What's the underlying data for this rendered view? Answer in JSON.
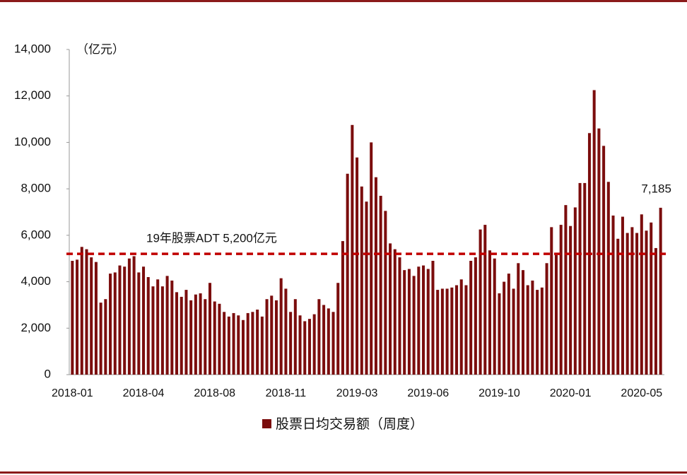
{
  "chart_data": {
    "type": "bar",
    "y_unit": "（亿元）",
    "legend": "股票日均交易额（周度）",
    "color": "#7b0d0d",
    "reference_line": {
      "value": 5200,
      "label": "19年股票ADT 5,200亿元",
      "color": "#c00000"
    },
    "categories": [
      "2018-01",
      null,
      null,
      null,
      null,
      null,
      null,
      null,
      null,
      null,
      null,
      null,
      null,
      null,
      null,
      "2018-04",
      null,
      null,
      null,
      null,
      null,
      null,
      null,
      null,
      null,
      null,
      null,
      null,
      null,
      null,
      "2018-08",
      null,
      null,
      null,
      null,
      null,
      null,
      null,
      null,
      null,
      null,
      null,
      null,
      null,
      null,
      "2018-11",
      null,
      null,
      null,
      null,
      null,
      null,
      null,
      null,
      null,
      null,
      null,
      null,
      null,
      null,
      "2019-03",
      null,
      null,
      null,
      null,
      null,
      null,
      null,
      null,
      null,
      null,
      null,
      null,
      null,
      null,
      "2019-06",
      null,
      null,
      null,
      null,
      null,
      null,
      null,
      null,
      null,
      null,
      null,
      null,
      null,
      null,
      "2019-10",
      null,
      null,
      null,
      null,
      null,
      null,
      null,
      null,
      null,
      null,
      null,
      null,
      null,
      null,
      "2020-01",
      null,
      null,
      null,
      null,
      null,
      null,
      null,
      null,
      null,
      null,
      null,
      null,
      null,
      null,
      "2020-05",
      null,
      null,
      null,
      null
    ],
    "values": [
      4900,
      4950,
      5500,
      5400,
      5050,
      4850,
      3100,
      3250,
      4350,
      4400,
      4700,
      4650,
      5000,
      5100,
      4400,
      4650,
      4200,
      3800,
      4100,
      3800,
      4250,
      4050,
      3550,
      3350,
      3650,
      3200,
      3450,
      3500,
      3250,
      3950,
      3150,
      3050,
      2700,
      2500,
      2650,
      2550,
      2350,
      2650,
      2700,
      2800,
      2500,
      3250,
      3400,
      3200,
      4150,
      3700,
      2700,
      3250,
      2550,
      2300,
      2400,
      2600,
      3250,
      3000,
      2850,
      2700,
      3950,
      5750,
      8650,
      10750,
      9350,
      8100,
      7450,
      10000,
      8500,
      7700,
      7050,
      5650,
      5400,
      5050,
      4500,
      4550,
      4250,
      4650,
      4700,
      4550,
      4900,
      3650,
      3700,
      3700,
      3750,
      3850,
      4100,
      3850,
      4900,
      5050,
      6250,
      6450,
      5350,
      5000,
      3500,
      4000,
      4350,
      3700,
      4800,
      4500,
      3850,
      4050,
      3650,
      3750,
      4800,
      6350,
      5150,
      6450,
      7300,
      6400,
      7200,
      8250,
      8250,
      10400,
      12250,
      10600,
      9850,
      8300,
      6850,
      5850,
      6800,
      6100,
      6350,
      6100,
      6900,
      6200,
      6550,
      5450,
      7185
    ],
    "value_labels": [
      null,
      null,
      null,
      null,
      null,
      null,
      null,
      null,
      null,
      null,
      null,
      null,
      null,
      null,
      null,
      null,
      null,
      null,
      null,
      null,
      null,
      null,
      null,
      null,
      null,
      null,
      null,
      null,
      null,
      null,
      null,
      null,
      null,
      null,
      null,
      null,
      null,
      null,
      null,
      null,
      null,
      null,
      null,
      null,
      null,
      null,
      null,
      null,
      null,
      null,
      null,
      null,
      null,
      null,
      null,
      null,
      null,
      null,
      null,
      null,
      null,
      null,
      null,
      null,
      null,
      null,
      null,
      null,
      null,
      null,
      null,
      null,
      null,
      null,
      null,
      null,
      null,
      null,
      null,
      null,
      null,
      null,
      null,
      null,
      null,
      null,
      null,
      null,
      null,
      null,
      null,
      null,
      null,
      null,
      null,
      null,
      null,
      null,
      null,
      null,
      null,
      null,
      null,
      null,
      null,
      null,
      null,
      null,
      null,
      null,
      null,
      null,
      null,
      null,
      null,
      null,
      null,
      null,
      null,
      null,
      null,
      null,
      null,
      null,
      "7,185"
    ],
    "ylim": [
      0,
      14000
    ],
    "yticks": [
      0,
      {
        "value": 2000,
        "label": "2,000"
      },
      {
        "value": 4000,
        "label": "4,000"
      },
      {
        "value": 6000,
        "label": "6,000"
      },
      {
        "value": 8000,
        "label": "8,000"
      },
      {
        "value": 10000,
        "label": "10,000"
      },
      {
        "value": 12000,
        "label": "12,000"
      },
      {
        "value": 14000,
        "label": "14,000"
      }
    ],
    "grid": false
  }
}
